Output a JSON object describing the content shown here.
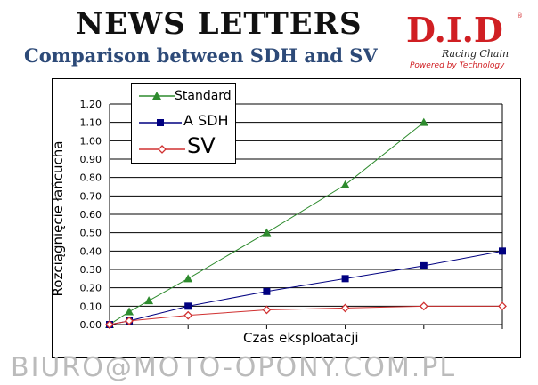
{
  "header": {
    "title": "NEWS LETTERS",
    "subtitle": "Comparison between SDH and SV"
  },
  "logo": {
    "brand": "D.I.D",
    "tagline": "Racing Chain",
    "slogan": "Powered by Technology",
    "reg": "®"
  },
  "watermark": "BIURO@MOTO-OPONY.COM.PL",
  "chart_data": {
    "type": "line",
    "title": "",
    "xlabel": "Czas eksploatacji",
    "ylabel": "Rozciągnięcie łańcucha",
    "xlim": [
      0,
      5
    ],
    "ylim": [
      0,
      1.2
    ],
    "yticks": [
      "0.00",
      "0.10",
      "0.20",
      "0.30",
      "0.40",
      "0.50",
      "0.60",
      "0.70",
      "0.80",
      "0.90",
      "1.00",
      "1.10",
      "1.20"
    ],
    "grid": "horizontal",
    "legend": "top-left",
    "series": [
      {
        "name": "Standard",
        "color": "#2e8b2e",
        "marker": "triangle",
        "x": [
          0,
          0.25,
          0.5,
          1,
          2,
          3,
          4
        ],
        "y": [
          0,
          0.07,
          0.13,
          0.25,
          0.5,
          0.76,
          1.1
        ]
      },
      {
        "name": "A SDH",
        "color": "#000080",
        "marker": "square",
        "x": [
          0,
          0.25,
          1,
          2,
          3,
          4,
          5
        ],
        "y": [
          0,
          0.02,
          0.1,
          0.18,
          0.25,
          0.32,
          0.4
        ]
      },
      {
        "name": "SV",
        "color": "#d03030",
        "marker": "diamond-open",
        "x": [
          0,
          0.25,
          1,
          2,
          3,
          4,
          5
        ],
        "y": [
          0,
          0.02,
          0.05,
          0.08,
          0.09,
          0.1,
          0.1
        ]
      }
    ]
  }
}
